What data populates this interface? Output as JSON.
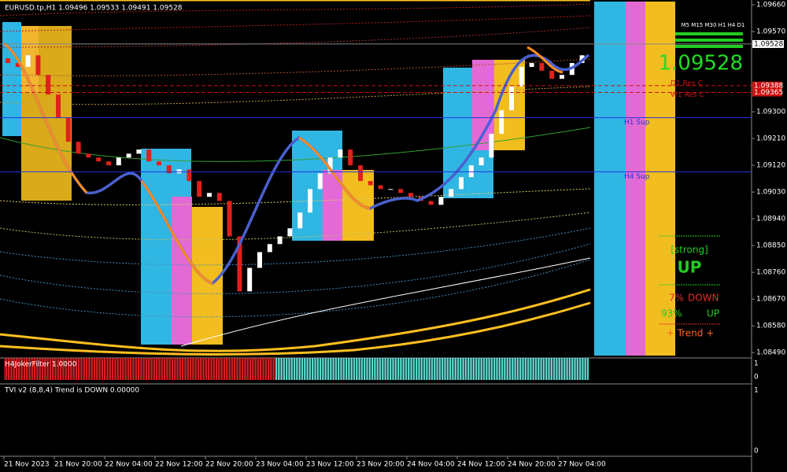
{
  "chart_data": {
    "type": "candlestick",
    "title": "EURUSD.tp,H1  1.09496 1.09533 1.09491 1.09528",
    "up_color": "#ffffff",
    "down_color": "#e0201c",
    "open": [
      1.0948,
      1.09464,
      1.09451,
      1.0949,
      1.09424,
      1.09358,
      1.09279,
      1.09199,
      1.09159,
      1.09146,
      1.09133,
      1.0912,
      1.09146,
      1.09159,
      1.09173,
      1.09133,
      1.0912,
      1.09093,
      1.09106,
      1.09067,
      1.09014,
      1.09027,
      1.09,
      1.08881,
      1.08696,
      1.08775,
      1.08828,
      1.08855,
      1.08881,
      1.08908,
      1.08961,
      1.0904,
      1.09093,
      1.09146,
      1.09173,
      1.0912,
      1.09067,
      1.09053,
      1.0904,
      1.0904,
      1.09027,
      1.09014,
      1.09,
      1.08987,
      1.09014,
      1.0904,
      1.0908,
      1.0912,
      1.09146,
      1.09226,
      1.09305,
      1.09385,
      1.09451,
      1.09464,
      1.09438,
      1.09411,
      1.09424,
      1.09464
    ],
    "close": [
      1.09464,
      1.09451,
      1.0949,
      1.09424,
      1.09358,
      1.09279,
      1.09199,
      1.09159,
      1.09146,
      1.09133,
      1.0912,
      1.09146,
      1.09159,
      1.09173,
      1.09133,
      1.0912,
      1.09093,
      1.09106,
      1.09067,
      1.09014,
      1.09027,
      1.09,
      1.08881,
      1.08696,
      1.08775,
      1.08828,
      1.08855,
      1.08881,
      1.08908,
      1.08961,
      1.0904,
      1.09093,
      1.09146,
      1.09173,
      1.0912,
      1.09067,
      1.09053,
      1.0904,
      1.0904,
      1.09027,
      1.09014,
      1.09,
      1.08987,
      1.09014,
      1.0904,
      1.0908,
      1.0912,
      1.09146,
      1.09226,
      1.09305,
      1.09385,
      1.09451,
      1.09464,
      1.09438,
      1.09411,
      1.09424,
      1.09464,
      1.0949
    ],
    "ylim": [
      1.08472,
      1.09676
    ],
    "yticks": [
      {
        "value": 1.0966,
        "label": "1.09660"
      },
      {
        "value": 1.0957,
        "label": "1.09570"
      },
      {
        "value": 1.093,
        "label": "1.09300"
      },
      {
        "value": 1.0921,
        "label": "1.09210"
      },
      {
        "value": 1.0912,
        "label": "1.09120"
      },
      {
        "value": 1.0903,
        "label": "1.09030"
      },
      {
        "value": 1.0894,
        "label": "1.08940"
      },
      {
        "value": 1.0885,
        "label": "1.08850"
      },
      {
        "value": 1.0876,
        "label": "1.08760"
      },
      {
        "value": 1.0867,
        "label": "1.08670"
      },
      {
        "value": 1.0858,
        "label": "1.08580"
      },
      {
        "value": 1.0849,
        "label": "1.08490"
      }
    ],
    "xticks": [
      {
        "value": 0,
        "label": "21 Nov 2023"
      },
      {
        "value": 5,
        "label": "21 Nov 20:00"
      },
      {
        "value": 10,
        "label": "22 Nov 04:00"
      },
      {
        "value": 15,
        "label": "22 Nov 12:00"
      },
      {
        "value": 20,
        "label": "22 Nov 20:00"
      },
      {
        "value": 25,
        "label": "23 Nov 04:00"
      },
      {
        "value": 30,
        "label": "23 Nov 12:00"
      },
      {
        "value": 35,
        "label": "23 Nov 20:00"
      },
      {
        "value": 40,
        "label": "24 Nov 04:00"
      },
      {
        "value": 45,
        "label": "24 Nov 12:00"
      },
      {
        "value": 50,
        "label": "24 Nov 20:00"
      },
      {
        "value": 55,
        "label": "27 Nov 04:00"
      }
    ],
    "current_price": 1.09528,
    "levels": [
      {
        "name": "H1 Sup",
        "value": 1.0928,
        "color": "#2233dd"
      },
      {
        "name": "H4 Sup",
        "value": 1.09098,
        "color": "#2233dd"
      },
      {
        "name": "D1 Res C",
        "value": 1.09388,
        "color": "#cc1111"
      },
      {
        "name": "W1 Res C",
        "value": 1.09365,
        "color": "#cc1111"
      }
    ],
    "panel": {
      "timeframes": "M5 M15 M30 H1 H4 D1",
      "strength": "[strong]",
      "direction": "UP",
      "down_pct": "7%",
      "down_label": "DOWN",
      "up_pct": "93%",
      "up_label": "UP",
      "trend": "+  Trend  +"
    },
    "subwindows": [
      {
        "title": "H4JokerFilter 1.0000",
        "yticks": [
          "1",
          "0"
        ]
      },
      {
        "title": "TVI v2 (8,8,4) Trend is DOWN 0.00000",
        "yticks": [
          "1",
          "0"
        ]
      }
    ]
  }
}
